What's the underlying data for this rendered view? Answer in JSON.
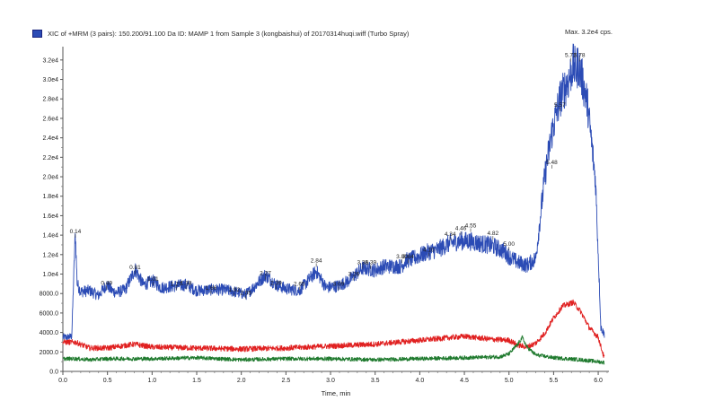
{
  "chart_data": {
    "type": "line",
    "title": "XIC of +MRM (3 pairs): 150.200/91.100 Da ID: MAMP 1 from Sample 3 (kongbaishui) of 20170314huqi.wiff (Turbo Spray)",
    "max_label": "Max. 3.2e4 cps.",
    "xlabel": "Time, min",
    "ylabel": "",
    "xlim": [
      0.0,
      6.1
    ],
    "ylim": [
      0,
      33000
    ],
    "x_ticks": [
      "0.0",
      "0.5",
      "1.0",
      "1.5",
      "2.0",
      "2.5",
      "3.0",
      "3.5",
      "4.0",
      "4.5",
      "5.0",
      "5.5",
      "6.0"
    ],
    "x_tick_values": [
      0.0,
      0.5,
      1.0,
      1.5,
      2.0,
      2.5,
      3.0,
      3.5,
      4.0,
      4.5,
      5.0,
      5.5,
      6.0
    ],
    "y_ticks": [
      "0.0",
      "2000.0",
      "4000.0",
      "6000.0",
      "8000.0",
      "1.0e4",
      "1.2e4",
      "1.4e4",
      "1.6e4",
      "1.8e4",
      "2.0e4",
      "2.2e4",
      "2.4e4",
      "2.6e4",
      "2.8e4",
      "3.0e4",
      "3.2e4"
    ],
    "y_tick_values": [
      0,
      2000,
      4000,
      6000,
      8000,
      10000,
      12000,
      14000,
      16000,
      18000,
      20000,
      22000,
      24000,
      26000,
      28000,
      30000,
      32000
    ],
    "colors": {
      "blue": "#2b4bb5",
      "red": "#e02020",
      "green": "#1f7a2e",
      "legend": "#2b4bb5"
    },
    "series": [
      {
        "color": "blue",
        "x": [
          0.0,
          0.05,
          0.1,
          0.13,
          0.14,
          0.16,
          0.2,
          0.3,
          0.4,
          0.49,
          0.55,
          0.6,
          0.7,
          0.81,
          0.9,
          1.01,
          1.1,
          1.27,
          1.38,
          1.5,
          1.66,
          1.8,
          1.92,
          2.05,
          2.1,
          2.27,
          2.39,
          2.5,
          2.65,
          2.84,
          2.95,
          3.09,
          3.2,
          3.26,
          3.36,
          3.39,
          3.5,
          3.6,
          3.8,
          3.84,
          3.9,
          4.1,
          4.2,
          4.34,
          4.46,
          4.55,
          4.65,
          4.82,
          4.95,
          5.0,
          5.1,
          5.2,
          5.3,
          5.4,
          5.48,
          5.57,
          5.62,
          5.67,
          5.72,
          5.75,
          5.78,
          5.82,
          5.88,
          5.92,
          5.97,
          6.0,
          6.03,
          6.07
        ],
        "y": [
          3500,
          3500,
          3600,
          12000,
          14200,
          9000,
          8200,
          8300,
          7800,
          8900,
          8300,
          8100,
          8400,
          10500,
          8900,
          9300,
          8600,
          8800,
          8900,
          8300,
          8400,
          8400,
          8200,
          7900,
          8300,
          9900,
          8900,
          8500,
          8300,
          10300,
          8600,
          8800,
          9300,
          9800,
          10600,
          10600,
          10400,
          10800,
          10800,
          11400,
          11500,
          12300,
          12500,
          13200,
          13400,
          13400,
          13200,
          12900,
          12300,
          11800,
          11200,
          10900,
          11600,
          20000,
          24500,
          28000,
          29000,
          30000,
          31500,
          31000,
          31500,
          30000,
          27500,
          24000,
          19500,
          12000,
          4500,
          3800
        ]
      },
      {
        "color": "red",
        "x": [
          0.0,
          0.14,
          0.3,
          0.5,
          0.8,
          1.0,
          1.5,
          2.0,
          2.5,
          3.0,
          3.5,
          4.0,
          4.5,
          4.8,
          5.0,
          5.1,
          5.2,
          5.3,
          5.4,
          5.5,
          5.6,
          5.72,
          5.8,
          5.9,
          6.0,
          6.07
        ],
        "y": [
          3000,
          3000,
          2400,
          2400,
          2800,
          2500,
          2400,
          2300,
          2400,
          2600,
          2800,
          3200,
          3600,
          3300,
          3200,
          2700,
          2500,
          2900,
          3900,
          5500,
          6700,
          7100,
          6200,
          4500,
          3500,
          1300
        ]
      },
      {
        "color": "green",
        "x": [
          0.0,
          0.14,
          0.3,
          0.5,
          1.0,
          1.5,
          2.0,
          2.5,
          3.0,
          3.5,
          4.0,
          4.5,
          4.9,
          5.0,
          5.1,
          5.15,
          5.2,
          5.3,
          5.5,
          5.8,
          6.0,
          6.07
        ],
        "y": [
          1300,
          1300,
          1200,
          1300,
          1300,
          1400,
          1200,
          1300,
          1300,
          1200,
          1300,
          1400,
          1500,
          1800,
          2800,
          3500,
          2500,
          1700,
          1400,
          1200,
          1000,
          900
        ]
      }
    ],
    "peak_labels": [
      {
        "text": "0.14",
        "x": 0.14,
        "y": 14200
      },
      {
        "text": "0.49",
        "x": 0.49,
        "y": 8900
      },
      {
        "text": "0.81",
        "x": 0.81,
        "y": 10500
      },
      {
        "text": "1.01",
        "x": 1.01,
        "y": 9300
      },
      {
        "text": "1.27",
        "x": 1.27,
        "y": 8800
      },
      {
        "text": "1.38",
        "x": 1.38,
        "y": 8900
      },
      {
        "text": "1.66",
        "x": 1.66,
        "y": 8400
      },
      {
        "text": "1.92",
        "x": 1.92,
        "y": 8200
      },
      {
        "text": "2.05",
        "x": 2.05,
        "y": 7900
      },
      {
        "text": "2.27",
        "x": 2.27,
        "y": 9900
      },
      {
        "text": "2.39",
        "x": 2.39,
        "y": 8900
      },
      {
        "text": "2.65",
        "x": 2.65,
        "y": 8800
      },
      {
        "text": "2.84",
        "x": 2.84,
        "y": 11200
      },
      {
        "text": "3.09",
        "x": 3.09,
        "y": 8800
      },
      {
        "text": "3.26",
        "x": 3.26,
        "y": 9800
      },
      {
        "text": "3.36",
        "x": 3.36,
        "y": 11000
      },
      {
        "text": "3.39",
        "x": 3.45,
        "y": 11000
      },
      {
        "text": "3.80",
        "x": 3.8,
        "y": 11600
      },
      {
        "text": "3.84",
        "x": 3.87,
        "y": 11600
      },
      {
        "text": "4.10",
        "x": 4.1,
        "y": 12300
      },
      {
        "text": "4.34",
        "x": 4.34,
        "y": 13900
      },
      {
        "text": "4.46",
        "x": 4.46,
        "y": 14500
      },
      {
        "text": "4.55",
        "x": 4.57,
        "y": 14800
      },
      {
        "text": "4.82",
        "x": 4.82,
        "y": 14000
      },
      {
        "text": "5.00",
        "x": 5.0,
        "y": 12900
      },
      {
        "text": "5.48",
        "x": 5.48,
        "y": 21300
      },
      {
        "text": "5.57",
        "x": 5.57,
        "y": 27200
      },
      {
        "text": "5.72",
        "x": 5.69,
        "y": 32300
      },
      {
        "text": "5.78",
        "x": 5.79,
        "y": 32300
      }
    ]
  }
}
